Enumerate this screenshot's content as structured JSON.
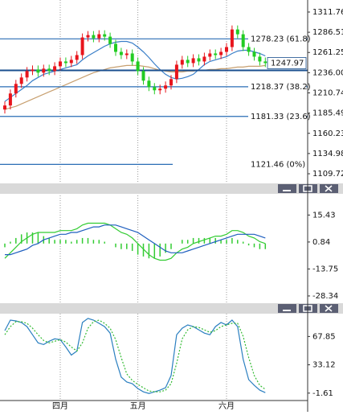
{
  "chart_data": [
    {
      "type": "candlestick",
      "categories": [
        null,
        null,
        null,
        null,
        null,
        null,
        null,
        null,
        null,
        null,
        "四月",
        null,
        null,
        null,
        null,
        null,
        null,
        null,
        null,
        null,
        null,
        null,
        null,
        null,
        "五月",
        null,
        null,
        null,
        null,
        null,
        null,
        null,
        null,
        null,
        null,
        null,
        null,
        null,
        null,
        null,
        "六月",
        null,
        null,
        null,
        null,
        null,
        null,
        null
      ],
      "open": [
        1190,
        1195,
        1210,
        1222,
        1230,
        1238,
        1240,
        1236,
        1241,
        1238,
        1244,
        1250,
        1248,
        1252,
        1258,
        1280,
        1283,
        1279,
        1284,
        1281,
        1272,
        1262,
        1258,
        1260,
        1250,
        1238,
        1226,
        1218,
        1214,
        1216,
        1220,
        1228,
        1246,
        1252,
        1248,
        1254,
        1250,
        1256,
        1260,
        1258,
        1262,
        1268,
        1290,
        1284,
        1268,
        1262,
        1256,
        1250
      ],
      "high": [
        1200,
        1215,
        1227,
        1235,
        1243,
        1245,
        1245,
        1246,
        1246,
        1249,
        1255,
        1255,
        1257,
        1263,
        1285,
        1288,
        1288,
        1289,
        1289,
        1286,
        1277,
        1267,
        1265,
        1265,
        1255,
        1243,
        1231,
        1223,
        1221,
        1225,
        1233,
        1251,
        1257,
        1257,
        1259,
        1259,
        1261,
        1265,
        1265,
        1267,
        1273,
        1295,
        1295,
        1289,
        1273,
        1267,
        1261,
        1255
      ],
      "low": [
        1185,
        1190,
        1205,
        1217,
        1225,
        1233,
        1231,
        1231,
        1233,
        1233,
        1239,
        1243,
        1243,
        1247,
        1253,
        1275,
        1274,
        1274,
        1276,
        1267,
        1257,
        1253,
        1253,
        1245,
        1233,
        1221,
        1213,
        1209,
        1209,
        1211,
        1215,
        1223,
        1241,
        1243,
        1243,
        1245,
        1245,
        1251,
        1253,
        1253,
        1257,
        1263,
        1279,
        1263,
        1257,
        1251,
        1245,
        1243
      ],
      "close": [
        1195,
        1210,
        1222,
        1230,
        1238,
        1240,
        1236,
        1241,
        1238,
        1244,
        1250,
        1248,
        1252,
        1258,
        1280,
        1283,
        1279,
        1284,
        1281,
        1272,
        1262,
        1258,
        1260,
        1250,
        1238,
        1226,
        1218,
        1214,
        1216,
        1220,
        1228,
        1246,
        1252,
        1248,
        1254,
        1250,
        1256,
        1260,
        1258,
        1262,
        1268,
        1290,
        1284,
        1268,
        1262,
        1256,
        1250,
        1248
      ],
      "up_color": "#e8141c",
      "down_color": "#22cc22",
      "series": [
        {
          "color": "#3a7fc8",
          "values": [
            1200,
            1205,
            1210,
            1215,
            1220,
            1226,
            1230,
            1234,
            1236,
            1238,
            1240,
            1242,
            1244,
            1246,
            1252,
            1257,
            1261,
            1265,
            1269,
            1272,
            1274,
            1275,
            1275,
            1273,
            1268,
            1262,
            1255,
            1247,
            1240,
            1234,
            1230,
            1228,
            1229,
            1231,
            1234,
            1240,
            1246,
            1250,
            1252,
            1254,
            1256,
            1260,
            1263,
            1264,
            1264,
            1262,
            1260,
            1257
          ]
        },
        {
          "color": "#c8a070",
          "values": [
            1190,
            1192,
            1194,
            1197,
            1200,
            1203,
            1206,
            1209,
            1212,
            1215,
            1218,
            1221,
            1224,
            1227,
            1230,
            1233,
            1236,
            1238,
            1240,
            1242,
            1243,
            1244,
            1245,
            1245,
            1245,
            1244,
            1243,
            1241,
            1239,
            1238,
            1237,
            1237,
            1237,
            1238,
            1238,
            1239,
            1239,
            1240,
            1240,
            1241,
            1241,
            1242,
            1243,
            1243,
            1244,
            1244,
            1244,
            1245
          ]
        }
      ],
      "levels": [
        {
          "value": 1278.23,
          "label": "1278.23 (61.8)"
        },
        {
          "value": 1218.37,
          "label": "1218.37 (38.2)"
        },
        {
          "value": 1181.33,
          "label": "1181.33 (23.6)"
        },
        {
          "value": 1121.46,
          "label": "1121.46 (0%)"
        }
      ],
      "level_color": "#2a6db5",
      "price_line": 1247.97,
      "ylim": [
        1099.7,
        1326.8
      ],
      "yticks": [
        1311.76,
        1286.51,
        1261.25,
        {
          "value": 1236,
          "label": "1236.00"
        },
        1210.74,
        1185.49,
        1160.23,
        1134.98,
        1109.72
      ]
    },
    {
      "type": "macd",
      "values": [
        -2,
        1,
        3,
        5,
        6,
        6,
        6,
        4,
        3,
        2,
        2,
        2,
        1,
        2,
        3,
        3,
        2,
        2,
        1,
        0,
        -2,
        -3,
        -3,
        -4,
        -6,
        -7,
        -8,
        -8,
        -7,
        -5,
        -3,
        0,
        2,
        2,
        3,
        3,
        3,
        3,
        3,
        2,
        2,
        3,
        2,
        1,
        -1,
        -2,
        -3,
        -3
      ],
      "color": "#33cc33",
      "series": [
        {
          "color": "#33cc33",
          "values": [
            -8,
            -5,
            -2,
            1,
            3,
            5,
            6,
            6,
            6,
            6,
            7,
            7,
            7,
            8,
            10,
            11,
            11,
            11,
            11,
            10,
            8,
            6,
            5,
            3,
            0,
            -3,
            -6,
            -8,
            -9,
            -9,
            -8,
            -5,
            -3,
            -2,
            0,
            1,
            2,
            3,
            4,
            4,
            5,
            7,
            7,
            6,
            4,
            3,
            1,
            0
          ]
        },
        {
          "color": "#1f5fbf",
          "values": [
            -6,
            -6,
            -5,
            -4,
            -3,
            -1,
            0,
            2,
            3,
            4,
            5,
            5,
            6,
            6,
            7,
            8,
            9,
            9,
            10,
            10,
            10,
            9,
            8,
            7,
            6,
            4,
            2,
            0,
            -2,
            -4,
            -5,
            -5,
            -5,
            -4,
            -3,
            -2,
            -1,
            0,
            1,
            2,
            3,
            4,
            5,
            5,
            5,
            5,
            4,
            3
          ]
        }
      ],
      "ylim": [
        -31.4,
        26.9
      ],
      "yticks": [
        15.43,
        0.84,
        -13.75,
        -28.34
      ]
    },
    {
      "type": "line",
      "series": [
        {
          "color": "#2a7fc0",
          "dashed": false,
          "values": [
            75,
            88,
            87,
            85,
            80,
            70,
            60,
            58,
            62,
            65,
            64,
            55,
            45,
            50,
            85,
            90,
            88,
            84,
            80,
            72,
            40,
            18,
            12,
            10,
            4,
            0,
            -2,
            0,
            2,
            5,
            20,
            70,
            78,
            82,
            80,
            76,
            72,
            70,
            80,
            85,
            82,
            88,
            80,
            40,
            15,
            8,
            2,
            -1
          ]
        },
        {
          "color": "#33bb33",
          "dashed": true,
          "values": [
            70,
            80,
            86,
            86,
            84,
            78,
            70,
            63,
            60,
            62,
            64,
            61,
            55,
            50,
            60,
            78,
            86,
            88,
            84,
            78,
            64,
            42,
            22,
            14,
            9,
            5,
            1,
            0,
            0,
            2,
            10,
            35,
            65,
            76,
            80,
            79,
            76,
            73,
            75,
            80,
            82,
            84,
            84,
            68,
            42,
            20,
            8,
            3
          ]
        }
      ],
      "ylim": [
        -17.6,
        95.85
      ],
      "yticks": [
        67.85,
        33.12,
        -1.61
      ]
    }
  ]
}
